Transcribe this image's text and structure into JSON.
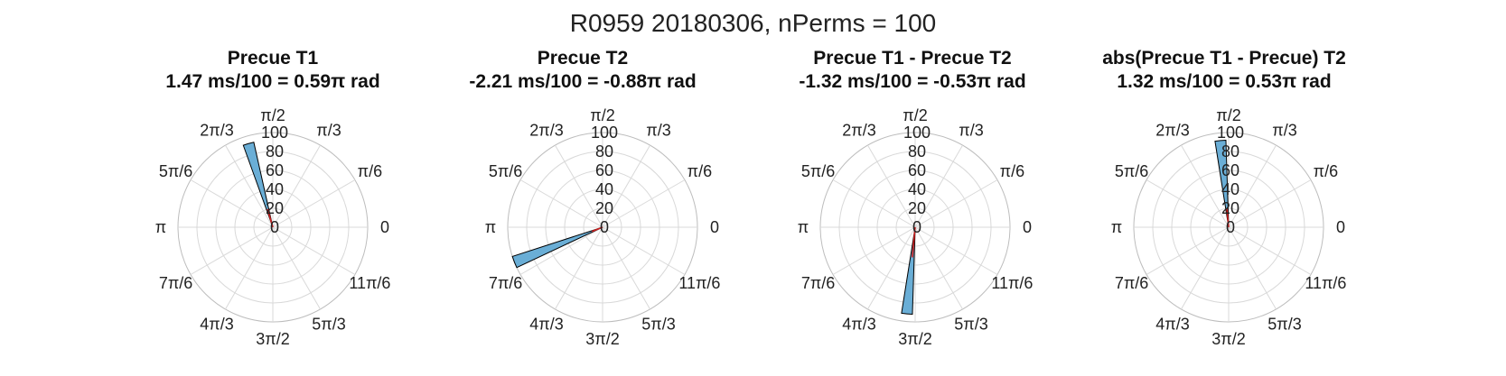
{
  "figure": {
    "suptitle": "R0959 20180306, nPerms = 100"
  },
  "colors": {
    "bar_fill": "#6aaed6",
    "bar_edge": "#000000",
    "mean_line": "#cc1f1f",
    "grid": "#d9d9d9",
    "tick_text": "#222222"
  },
  "chart_data": [
    {
      "type": "polar-histogram",
      "title": "Precue T1",
      "subtitle": "1.47 ms/100 = 0.59π rad",
      "r_ticks": [
        "0",
        "20",
        "40",
        "60",
        "80",
        "100"
      ],
      "rlim": [
        0,
        100
      ],
      "theta_ticks": [
        "0",
        "π/6",
        "π/3",
        "π/2",
        "2π/3",
        "5π/6",
        "π",
        "7π/6",
        "4π/3",
        "3π/2",
        "5π/3",
        "11π/6"
      ],
      "bars": [
        {
          "theta_center_pi": 0.59,
          "width_pi": 0.04,
          "value": 92
        }
      ],
      "mean_vector": {
        "theta_pi": 0.59,
        "length": 20
      }
    },
    {
      "type": "polar-histogram",
      "title": "Precue T2",
      "subtitle": "-2.21 ms/100 = -0.88π rad",
      "r_ticks": [
        "0",
        "20",
        "40",
        "60",
        "80",
        "100"
      ],
      "rlim": [
        0,
        100
      ],
      "theta_ticks": [
        "0",
        "π/6",
        "π/3",
        "π/2",
        "2π/3",
        "5π/6",
        "π",
        "7π/6",
        "4π/3",
        "3π/2",
        "5π/3",
        "11π/6"
      ],
      "bars": [
        {
          "theta_center_pi": 1.12,
          "width_pi": 0.04,
          "value": 100
        }
      ],
      "mean_vector": {
        "theta_pi": 1.12,
        "length": 12
      }
    },
    {
      "type": "polar-histogram",
      "title": "Precue T1 - Precue T2",
      "subtitle": "-1.32 ms/100 = -0.53π rad",
      "r_ticks": [
        "0",
        "20",
        "40",
        "60",
        "80",
        "100"
      ],
      "rlim": [
        0,
        100
      ],
      "theta_ticks": [
        "0",
        "π/6",
        "π/3",
        "π/2",
        "2π/3",
        "5π/6",
        "π",
        "7π/6",
        "4π/3",
        "3π/2",
        "5π/3",
        "11π/6"
      ],
      "bars": [
        {
          "theta_center_pi": 1.47,
          "width_pi": 0.04,
          "value": 92
        }
      ],
      "mean_vector": {
        "theta_pi": 1.47,
        "length": 32
      }
    },
    {
      "type": "polar-histogram",
      "title": "abs(Precue T1 - Precue) T2",
      "subtitle": "1.32 ms/100 = 0.53π rad",
      "r_ticks": [
        "0",
        "20",
        "40",
        "60",
        "80",
        "100"
      ],
      "rlim": [
        0,
        100
      ],
      "theta_ticks": [
        "0",
        "π/6",
        "π/3",
        "π/2",
        "2π/3",
        "5π/6",
        "π",
        "7π/6",
        "4π/3",
        "3π/2",
        "5π/3",
        "11π/6"
      ],
      "bars": [
        {
          "theta_center_pi": 0.53,
          "width_pi": 0.04,
          "value": 92
        }
      ],
      "mean_vector": {
        "theta_pi": 0.53,
        "length": 20
      }
    }
  ]
}
